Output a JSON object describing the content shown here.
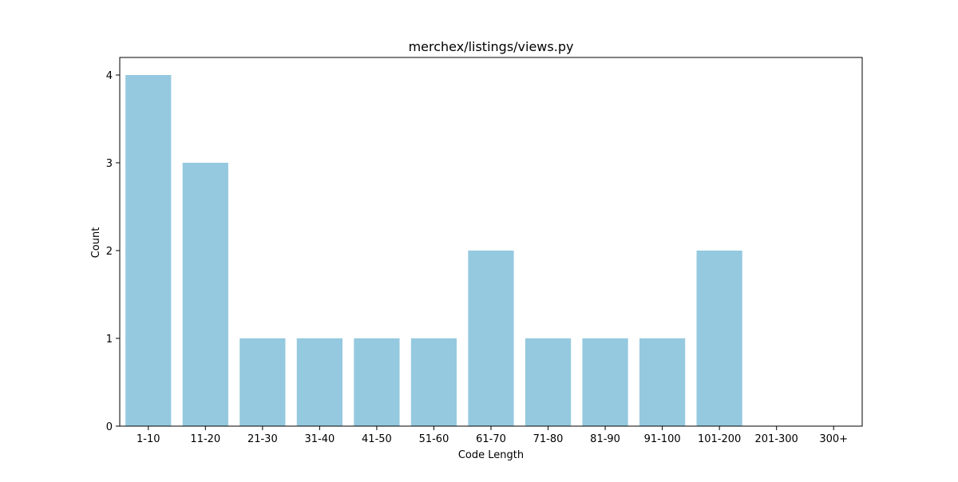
{
  "chart_data": {
    "type": "bar",
    "title": "merchex/listings/views.py",
    "xlabel": "Code Length",
    "ylabel": "Count",
    "categories": [
      "1-10",
      "11-20",
      "21-30",
      "31-40",
      "41-50",
      "51-60",
      "61-70",
      "71-80",
      "81-90",
      "91-100",
      "101-200",
      "201-300",
      "300+"
    ],
    "values": [
      4,
      3,
      1,
      1,
      1,
      1,
      2,
      1,
      1,
      1,
      2,
      0,
      0
    ],
    "ylim": [
      0,
      4.2
    ],
    "yticks": [
      0,
      1,
      2,
      3,
      4
    ],
    "bar_color": "#95c9df",
    "grid": false
  }
}
